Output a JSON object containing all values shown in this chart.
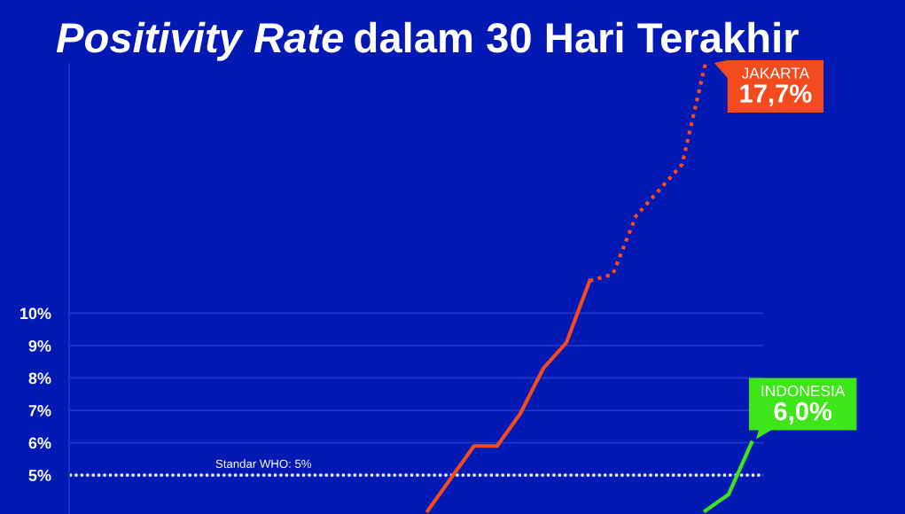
{
  "chart_data": {
    "type": "line",
    "title": "Positivity Rate dalam 30 Hari Terakhir",
    "categories": [
      null,
      null,
      null,
      null,
      null,
      null,
      null,
      null,
      null,
      null,
      null,
      null,
      null,
      null,
      null,
      null,
      null,
      null,
      null,
      null,
      null,
      null,
      null,
      null,
      null,
      null,
      null,
      null,
      null,
      null
    ],
    "series": [
      {
        "color": "#f24c1e",
        "values": [
          null,
          null,
          null,
          null,
          null,
          null,
          null,
          null,
          null,
          null,
          null,
          null,
          null,
          null,
          null,
          3.9,
          4.9,
          5.9,
          5.9,
          6.9,
          8.3,
          9.1,
          11.0,
          null,
          null,
          null,
          null,
          null,
          null,
          null
        ]
      },
      {
        "name": "JAKARTA",
        "color": "#f24c1e",
        "line_style": "dotted",
        "values": [
          null,
          null,
          null,
          null,
          null,
          null,
          null,
          null,
          null,
          null,
          null,
          null,
          null,
          null,
          null,
          null,
          null,
          null,
          null,
          null,
          null,
          null,
          11.0,
          11.2,
          13.0,
          13.8,
          14.6,
          17.7,
          null,
          null
        ],
        "value_labels": [
          null,
          null,
          null,
          null,
          null,
          null,
          null,
          null,
          null,
          null,
          null,
          null,
          null,
          null,
          null,
          null,
          null,
          null,
          null,
          null,
          null,
          null,
          null,
          null,
          null,
          null,
          null,
          "17,7%",
          null,
          null
        ]
      },
      {
        "name": "INDONESIA",
        "color": "#3ee619",
        "values": [
          null,
          null,
          null,
          null,
          null,
          null,
          null,
          null,
          null,
          null,
          null,
          null,
          null,
          null,
          null,
          null,
          null,
          null,
          null,
          null,
          null,
          null,
          null,
          null,
          null,
          null,
          null,
          3.9,
          4.4,
          6.0
        ],
        "value_labels": [
          null,
          null,
          null,
          null,
          null,
          null,
          null,
          null,
          null,
          null,
          null,
          null,
          null,
          null,
          null,
          null,
          null,
          null,
          null,
          null,
          null,
          null,
          null,
          null,
          null,
          null,
          null,
          null,
          null,
          "6,0%"
        ]
      }
    ],
    "ylim": [
      3.8,
      17.7
    ],
    "yticks": [
      {
        "value": 5,
        "label": "5%"
      },
      {
        "value": 6,
        "label": "6%"
      },
      {
        "value": 7,
        "label": "7%"
      },
      {
        "value": 8,
        "label": "8%"
      },
      {
        "value": 9,
        "label": "9%"
      },
      {
        "value": 10,
        "label": "10%"
      }
    ],
    "grid": "y",
    "tick_labels": "y",
    "line_style": "solid",
    "ref_lines": [
      {
        "axis": "y",
        "value": 5,
        "label": "Standar WHO: 5%",
        "color": "#ffffff",
        "line_style": "dotted"
      }
    ]
  }
}
